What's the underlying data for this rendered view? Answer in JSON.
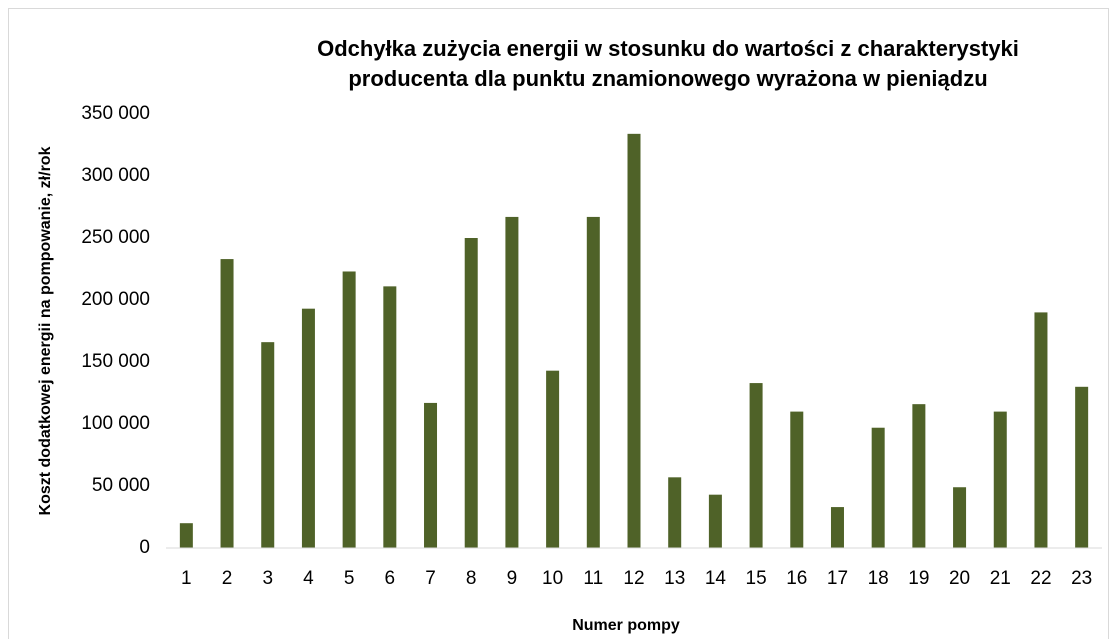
{
  "chart_data": {
    "type": "bar",
    "title": [
      "Odchyłka zużycia energii w stosunku do wartości z charakterystyki",
      "producenta dla punktu znamionowego wyrażona w pieniądzu"
    ],
    "x_label": "Numer pompy",
    "y_label": "Koszt dodatkowej energii na pompowanie, zł/rok",
    "categories": [
      "1",
      "2",
      "3",
      "4",
      "5",
      "6",
      "7",
      "8",
      "9",
      "10",
      "11",
      "12",
      "13",
      "14",
      "15",
      "16",
      "17",
      "18",
      "19",
      "20",
      "21",
      "22",
      "23"
    ],
    "values": [
      20000,
      233000,
      166000,
      193000,
      223000,
      211000,
      117000,
      250000,
      267000,
      143000,
      267000,
      334000,
      57000,
      43000,
      133000,
      110000,
      33000,
      97000,
      116000,
      49000,
      110000,
      190000,
      130000
    ],
    "color": "#4f6228",
    "ylim": [
      0,
      350000
    ],
    "yticks": [
      0,
      {
        "value": 50000,
        "label": "50 000"
      },
      {
        "value": 100000,
        "label": "100 000"
      },
      {
        "value": 150000,
        "label": "150 000"
      },
      {
        "value": 200000,
        "label": "200 000"
      },
      {
        "value": 250000,
        "label": "250 000"
      },
      {
        "value": 300000,
        "label": "300 000"
      },
      {
        "value": 350000,
        "label": "350 000"
      }
    ],
    "grid": false
  }
}
